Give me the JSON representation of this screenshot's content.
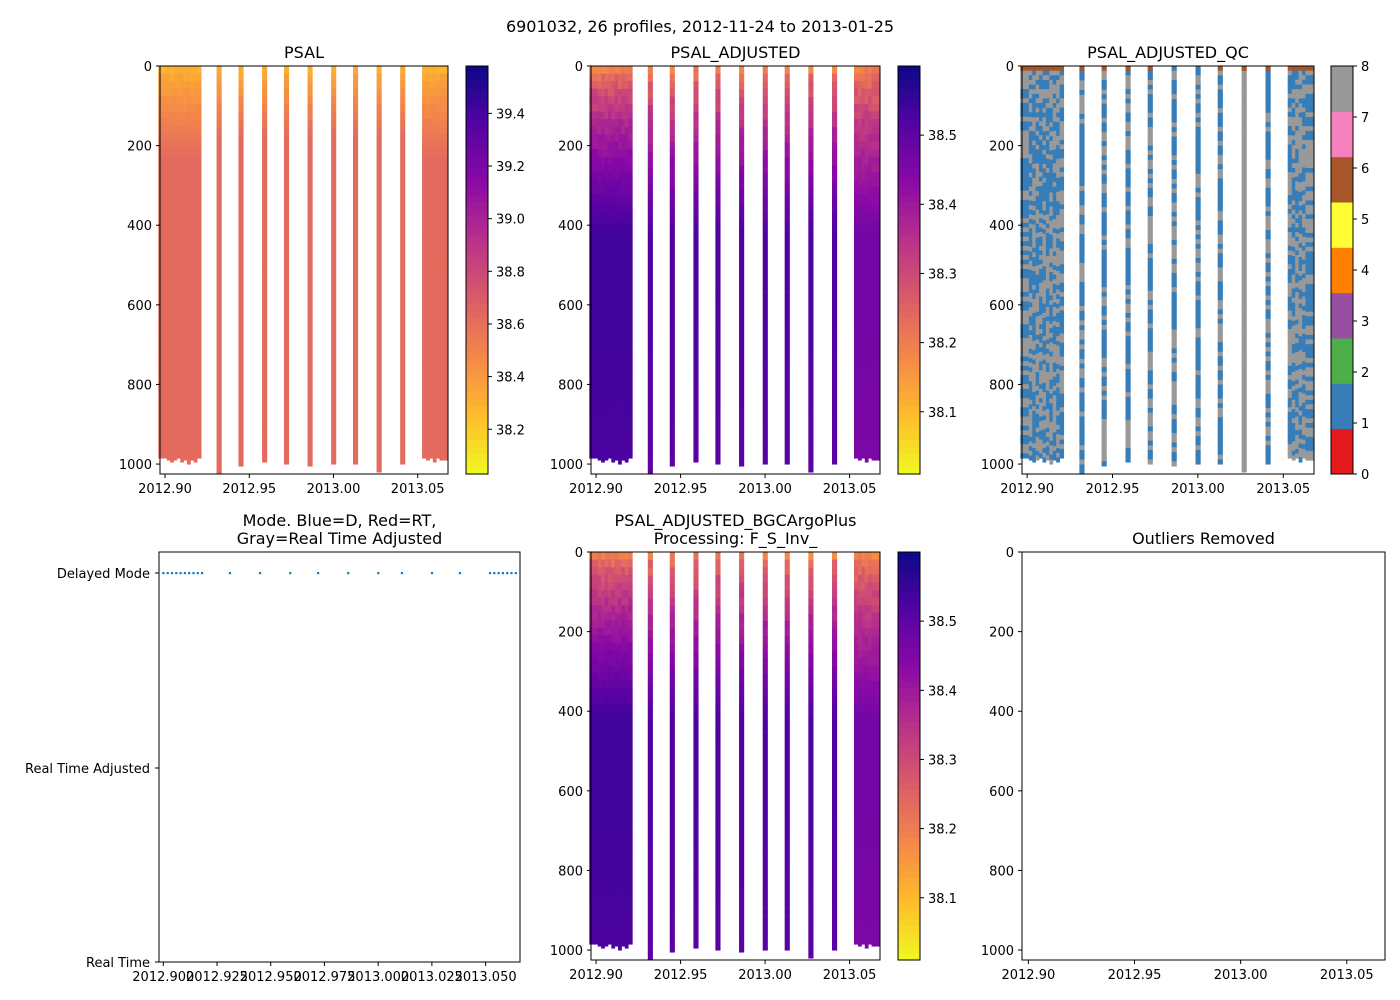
{
  "suptitle": "6901032, 26 profiles, 2012-11-24 to 2013-01-25",
  "colors": {
    "qc": [
      "#e41a1c",
      "#377eb8",
      "#4daf4a",
      "#984ea3",
      "#ff7f00",
      "#ffff33",
      "#a65628",
      "#f781bf",
      "#999999"
    ],
    "mode_point": "#1f77b4"
  },
  "chart_data": [
    {
      "id": "psal",
      "type": "heatmap",
      "title": "PSAL",
      "colormap": "plasma_r",
      "xticks": [
        "2012.90",
        "2012.95",
        "2013.00",
        "2013.05"
      ],
      "xlim": [
        2012.897,
        2013.068
      ],
      "ylim": [
        1025,
        0
      ],
      "yticks": [
        "0",
        "200",
        "400",
        "600",
        "800",
        "1000"
      ],
      "colorbar": {
        "ticks": [
          "38.2",
          "38.4",
          "38.6",
          "38.8",
          "39.0",
          "39.2",
          "39.4"
        ],
        "range": [
          38.03,
          39.58
        ]
      },
      "surface_value": 38.28,
      "deep_value": 38.62,
      "profile_times": [
        2012.9,
        2012.902,
        2012.904,
        2012.906,
        2012.908,
        2012.91,
        2012.912,
        2012.914,
        2012.916,
        2012.918,
        2012.92,
        2012.932,
        2012.945,
        2012.959,
        2012.972,
        2012.986,
        2013.0,
        2013.013,
        2013.027,
        2013.041,
        2013.054,
        2013.056,
        2013.058,
        2013.06,
        2013.062,
        2013.064
      ],
      "profile_max_depth": [
        985,
        990,
        995,
        990,
        985,
        995,
        990,
        1000,
        990,
        995,
        985,
        1025,
        1005,
        995,
        1000,
        1005,
        1000,
        1000,
        1020,
        1000,
        985,
        990,
        985,
        995,
        985,
        990
      ]
    },
    {
      "id": "psal_adjusted",
      "type": "heatmap",
      "title": "PSAL_ADJUSTED",
      "colormap": "plasma_r",
      "xticks": [
        "2012.90",
        "2012.95",
        "2013.00",
        "2013.05"
      ],
      "xlim": [
        2012.897,
        2013.068
      ],
      "ylim": [
        1025,
        0
      ],
      "yticks": [
        "0",
        "200",
        "400",
        "600",
        "800",
        "1000"
      ],
      "colorbar": {
        "ticks": [
          "38.1",
          "38.2",
          "38.3",
          "38.4",
          "38.5"
        ],
        "range": [
          38.01,
          38.6
        ]
      },
      "surface_value": 38.15,
      "deep_value": 38.54
    },
    {
      "id": "psal_adjusted_qc",
      "type": "heatmap",
      "title": "PSAL_ADJUSTED_QC",
      "colormap": "Set1",
      "xticks": [
        "2012.90",
        "2012.95",
        "2013.00",
        "2013.05"
      ],
      "xlim": [
        2012.897,
        2013.068
      ],
      "ylim": [
        1025,
        0
      ],
      "yticks": [
        "0",
        "200",
        "400",
        "600",
        "800",
        "1000"
      ],
      "colorbar": {
        "ticks": [
          "0",
          "1",
          "2",
          "3",
          "4",
          "5",
          "6",
          "7",
          "8"
        ],
        "range": [
          0,
          8
        ]
      }
    },
    {
      "id": "mode",
      "type": "scatter",
      "title_line1": "Mode. Blue=D, Red=RT,",
      "title_line2": "Gray=Real Time Adjusted",
      "xticks": [
        "2012.900",
        "2012.925",
        "2012.950",
        "2012.975",
        "2013.000",
        "2013.025",
        "2013.050"
      ],
      "xlim": [
        2012.898,
        2013.066
      ],
      "yticks": [
        "Delayed Mode",
        "Real Time Adjusted",
        "Real Time"
      ],
      "series": [
        {
          "name": "Delayed Mode",
          "x": [
            2012.9,
            2012.902,
            2012.904,
            2012.906,
            2012.908,
            2012.91,
            2012.912,
            2012.914,
            2012.916,
            2012.918,
            2012.931,
            2012.945,
            2012.959,
            2012.972,
            2012.986,
            2013.0,
            2013.011,
            2013.025,
            2013.038,
            2013.052,
            2013.054,
            2013.056,
            2013.058,
            2013.06,
            2013.062,
            2013.064
          ],
          "y": "Delayed Mode"
        }
      ]
    },
    {
      "id": "psal_bgc",
      "type": "heatmap",
      "title_line1": "PSAL_ADJUSTED_BGCArgoPlus",
      "title_line2": "Processing: F_S_Inv_",
      "colormap": "plasma_r",
      "xticks": [
        "2012.90",
        "2012.95",
        "2013.00",
        "2013.05"
      ],
      "xlim": [
        2012.897,
        2013.068
      ],
      "ylim": [
        1025,
        0
      ],
      "yticks": [
        "0",
        "200",
        "400",
        "600",
        "800",
        "1000"
      ],
      "colorbar": {
        "ticks": [
          "38.1",
          "38.2",
          "38.3",
          "38.4",
          "38.5"
        ],
        "range": [
          38.01,
          38.6
        ]
      },
      "surface_value": 38.15,
      "deep_value": 38.54
    },
    {
      "id": "outliers",
      "type": "scatter",
      "title": "Outliers Removed",
      "xticks": [
        "2012.90",
        "2012.95",
        "2013.00",
        "2013.05"
      ],
      "xlim": [
        2012.897,
        2013.068
      ],
      "ylim": [
        1025,
        0
      ],
      "yticks": [
        "0",
        "200",
        "400",
        "600",
        "800",
        "1000"
      ]
    }
  ]
}
